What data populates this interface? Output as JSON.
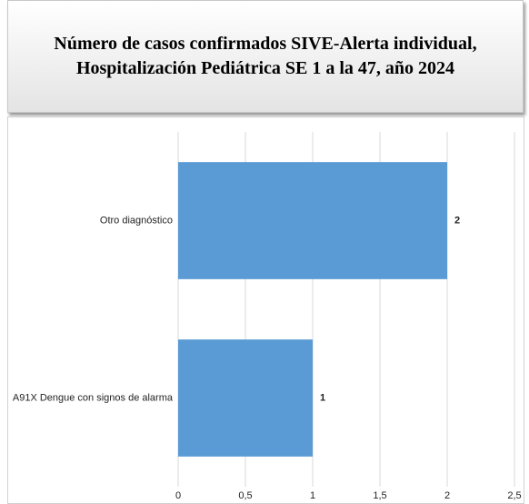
{
  "chart_data": {
    "type": "hbar",
    "title": "Número de casos confirmados SIVE-Alerta individual, Hospitalización Pediátrica SE 1 a la 47, año 2024",
    "categories": [
      "Otro diagnóstico",
      "A91X Dengue con signos de alarma"
    ],
    "values": [
      2,
      1
    ],
    "color": "#5b9bd5",
    "xlim": [
      0,
      2.5
    ],
    "xticks": [
      0,
      {
        "value": 0.5,
        "label": "0,5"
      },
      1,
      {
        "value": 1.5,
        "label": "1,5"
      },
      2,
      {
        "value": 2.5,
        "label": "2,5"
      }
    ],
    "grid": true
  }
}
